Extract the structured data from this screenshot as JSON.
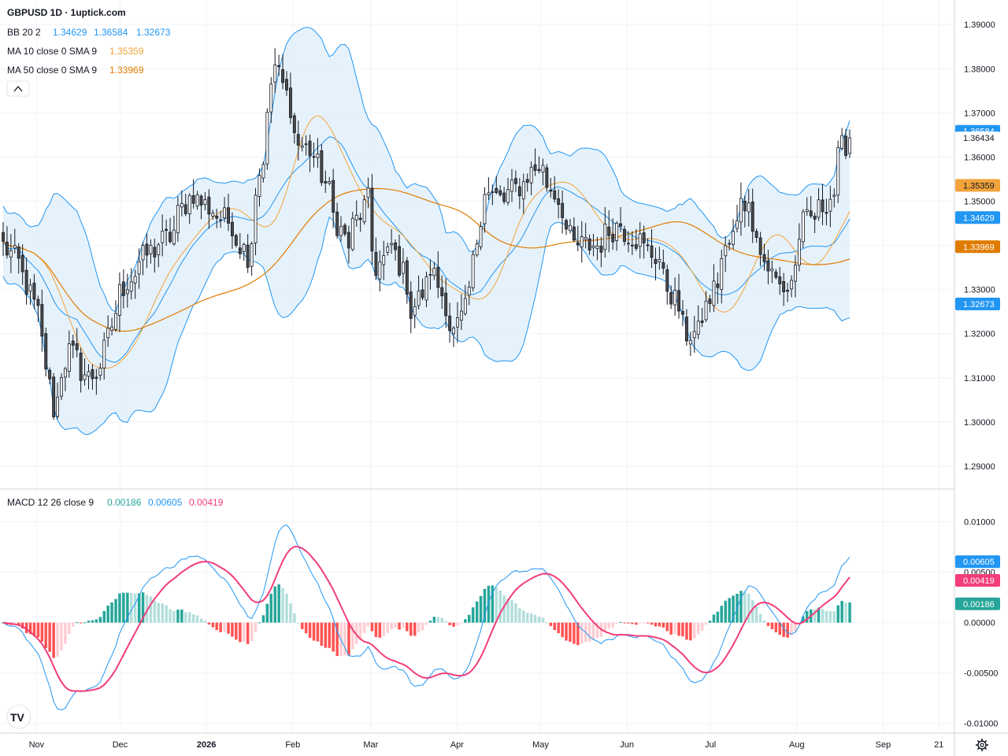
{
  "header": {
    "symbol_title": "GBPUSD 1D · 1uptick.com"
  },
  "legend": {
    "bb": {
      "label": "BB 20 2",
      "values": [
        "1.34629",
        "1.36584",
        "1.32673"
      ]
    },
    "ma10": {
      "label": "MA 10 close 0 SMA 9",
      "value": "1.35359"
    },
    "ma50": {
      "label": "MA 50 close 0 SMA 9",
      "value": "1.33969"
    },
    "macd": {
      "label": "MACD 12 26 close 9",
      "values": [
        "0.00186",
        "0.00605",
        "0.00419"
      ]
    }
  },
  "price_axis": {
    "ticks": [
      "1.39000",
      "1.38000",
      "1.37000",
      "1.36000",
      "1.35000",
      "1.34000",
      "1.33000",
      "1.32000",
      "1.31000",
      "1.30000",
      "1.29000"
    ]
  },
  "macd_axis": {
    "ticks": [
      "0.01000",
      "0.00500",
      "0.00000",
      "-0.00500",
      "-0.01000"
    ]
  },
  "time_axis": {
    "labels": [
      "Nov",
      "Dec",
      "2026",
      "Feb",
      "Mar",
      "Apr",
      "May",
      "Jun",
      "Jul",
      "Aug",
      "Sep",
      "21"
    ]
  },
  "tags": {
    "bb_upper": "1.36584",
    "last_price": "1.36434",
    "ma10": "1.35359",
    "bb_basis": "1.34629",
    "ma50": "1.33969",
    "bb_lower": "1.32673",
    "macd_line": "0.00605",
    "signal_line": "0.00419",
    "histogram": "0.00186"
  },
  "logo": "TV",
  "colors": {
    "bull": "#ffffff",
    "bear": "#4a4a4a",
    "wick": "#131722",
    "bb_fill": "#ddeefa",
    "bb_line": "#2196f3",
    "ma10": "#f2a33a",
    "ma50": "#e07b00",
    "macd_line": "#2196f3",
    "signal": "#f23d7a",
    "hist_pos_up": "#26a69a",
    "hist_pos_down": "#b2dfdb",
    "hist_neg_down": "#ff5252",
    "hist_neg_up": "#ffcdd2",
    "grid": "#f0f3fa"
  },
  "chart_data": [
    {
      "type": "candlestick",
      "title": "GBPUSD 1D",
      "ylim": [
        1.285,
        1.392
      ],
      "start_date": "2025-10-20",
      "end_date": "2026-08-20",
      "price_path": [
        [
          "2025-10-20",
          1.34
        ],
        [
          "2025-10-27",
          1.333
        ],
        [
          "2025-11-03",
          1.318
        ],
        [
          "2025-11-06",
          1.303
        ],
        [
          "2025-11-12",
          1.316
        ],
        [
          "2025-11-19",
          1.31
        ],
        [
          "2025-11-24",
          1.313
        ],
        [
          "2025-11-28",
          1.325
        ],
        [
          "2025-12-03",
          1.332
        ],
        [
          "2025-12-10",
          1.338
        ],
        [
          "2025-12-18",
          1.342
        ],
        [
          "2025-12-26",
          1.352
        ],
        [
          "2026-01-02",
          1.348
        ],
        [
          "2026-01-09",
          1.345
        ],
        [
          "2026-01-15",
          1.338
        ],
        [
          "2026-01-21",
          1.36
        ],
        [
          "2026-01-24",
          1.385
        ],
        [
          "2026-01-29",
          1.374
        ],
        [
          "2026-02-03",
          1.363
        ],
        [
          "2026-02-09",
          1.36
        ],
        [
          "2026-02-13",
          1.352
        ],
        [
          "2026-02-20",
          1.34
        ],
        [
          "2026-02-27",
          1.35
        ],
        [
          "2026-03-03",
          1.335
        ],
        [
          "2026-03-09",
          1.34
        ],
        [
          "2026-03-16",
          1.325
        ],
        [
          "2026-03-23",
          1.335
        ],
        [
          "2026-03-27",
          1.327
        ],
        [
          "2026-03-31",
          1.32
        ],
        [
          "2026-04-06",
          1.33
        ],
        [
          "2026-04-10",
          1.353
        ],
        [
          "2026-04-17",
          1.35
        ],
        [
          "2026-04-24",
          1.354
        ],
        [
          "2026-04-30",
          1.358
        ],
        [
          "2026-05-06",
          1.352
        ],
        [
          "2026-05-13",
          1.34
        ],
        [
          "2026-05-21",
          1.34
        ],
        [
          "2026-05-29",
          1.345
        ],
        [
          "2026-06-05",
          1.341
        ],
        [
          "2026-06-12",
          1.337
        ],
        [
          "2026-06-19",
          1.326
        ],
        [
          "2026-06-23",
          1.32
        ],
        [
          "2026-06-27",
          1.32
        ],
        [
          "2026-07-02",
          1.33
        ],
        [
          "2026-07-09",
          1.342
        ],
        [
          "2026-07-13",
          1.352
        ],
        [
          "2026-07-20",
          1.338
        ],
        [
          "2026-07-24",
          1.332
        ],
        [
          "2026-07-29",
          1.33
        ],
        [
          "2026-08-04",
          1.345
        ],
        [
          "2026-08-10",
          1.348
        ],
        [
          "2026-08-14",
          1.352
        ],
        [
          "2026-08-18",
          1.362
        ],
        [
          "2026-08-20",
          1.3643
        ]
      ],
      "last_close": 1.36434,
      "bb_upper_last": 1.36584,
      "bb_basis_last": 1.34629,
      "bb_lower_last": 1.32673,
      "ma10_last": 1.35359,
      "ma50_last": 1.33969
    },
    {
      "type": "line",
      "title": "MACD 12 26 close 9",
      "ylim": [
        -0.0105,
        0.0106
      ],
      "series": [
        {
          "name": "MACD",
          "last": 0.00605
        },
        {
          "name": "Signal",
          "last": 0.00419
        },
        {
          "name": "Histogram",
          "last": 0.00186
        }
      ]
    }
  ]
}
